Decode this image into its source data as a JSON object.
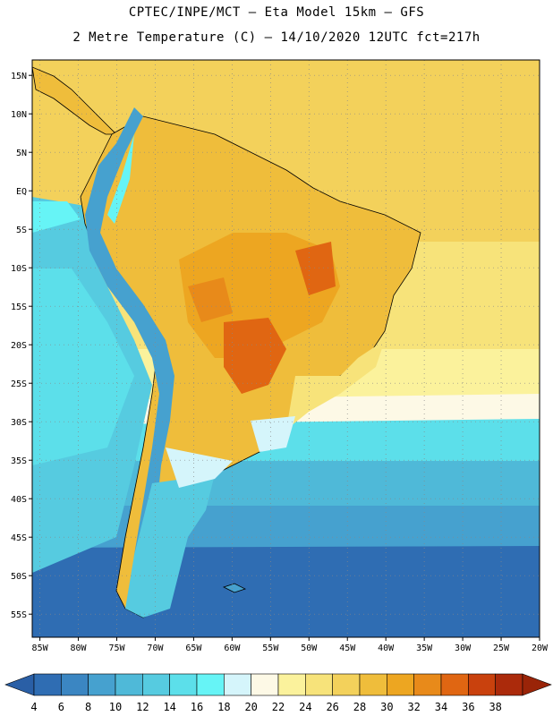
{
  "header": {
    "line1": "CPTEC/INPE/MCT –  Eta Model 15km – GFS",
    "line2": "2 Metre Temperature (C) – 14/10/2020 12UTC fct=217h"
  },
  "map": {
    "lon_range": [
      -86,
      -20
    ],
    "lat_range": [
      -58,
      17
    ],
    "lat_ticks": [
      "15N",
      "10N",
      "5N",
      "EQ",
      "5S",
      "10S",
      "15S",
      "20S",
      "25S",
      "30S",
      "35S",
      "40S",
      "45S",
      "50S",
      "55S"
    ],
    "lat_values": [
      15,
      10,
      5,
      0,
      -5,
      -10,
      -15,
      -20,
      -25,
      -30,
      -35,
      -40,
      -45,
      -50,
      -55
    ],
    "lon_ticks": [
      "85W",
      "80W",
      "75W",
      "70W",
      "65W",
      "60W",
      "55W",
      "50W",
      "45W",
      "40W",
      "35W",
      "30W",
      "25W",
      "20W"
    ],
    "lon_values": [
      -85,
      -80,
      -75,
      -70,
      -65,
      -60,
      -55,
      -50,
      -45,
      -40,
      -35,
      -30,
      -25,
      -20
    ],
    "grid": "dotted"
  },
  "colorbar": {
    "labels": [
      "4",
      "6",
      "8",
      "10",
      "12",
      "14",
      "16",
      "18",
      "20",
      "22",
      "24",
      "26",
      "28",
      "30",
      "32",
      "34",
      "36",
      "38"
    ],
    "colors": [
      "#2f6db3",
      "#3b86c2",
      "#46a1cf",
      "#4fb9d8",
      "#56cbe0",
      "#5cdfea",
      "#66f4f6",
      "#d5f5fb",
      "#fdf9e6",
      "#fbf29c",
      "#f7e37a",
      "#f3d15b",
      "#efbd3b",
      "#eda621",
      "#e88a1a",
      "#e06612",
      "#c9410d",
      "#ab2a0b"
    ],
    "low_color": "#2a5fa6",
    "high_color": "#9a2408"
  }
}
